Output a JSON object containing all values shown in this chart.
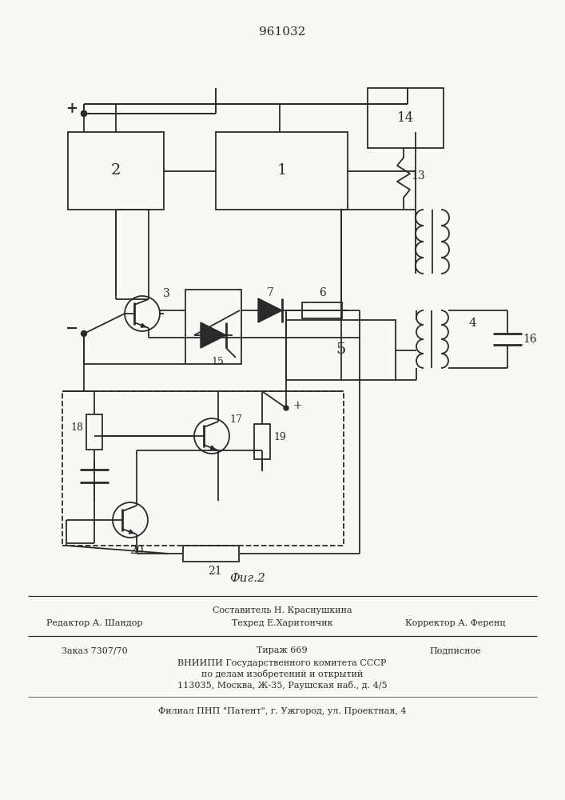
{
  "patent_number": "961032",
  "fig_label": "Фиг.2",
  "footer_line0_center": "Составитель Н. Краснушкина",
  "footer_line1_left": "Редактор А. Шандор",
  "footer_line1_center": "Техред Е.Харитончик",
  "footer_line1_right": "Корректор А. Ференц",
  "footer_line2_left": "Заказ 7307/70",
  "footer_line2_center": "Тираж 669",
  "footer_line2_right": "Подписное",
  "footer_line3": "ВНИИПИ Государственного комитета СССР",
  "footer_line4": "по делам изобретений и открытий",
  "footer_line5": "113035, Москва, Ж-35, Раушская наб., д. 4/5",
  "footer_line6": "Филиал ПНП \"Патент\", г. Ужгород, ул. Проектная, 4",
  "bg_color": "#f8f8f5",
  "line_color": "#2a2a2a"
}
